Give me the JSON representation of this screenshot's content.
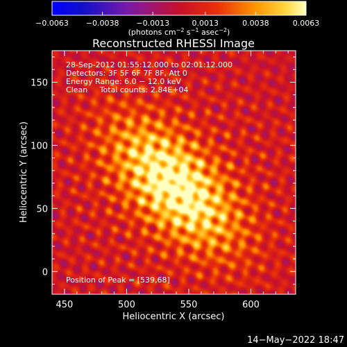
{
  "chart_data": {
    "type": "heatmap",
    "title": "Reconstructed RHESSI Image",
    "xlabel": "Heliocentric X (arcsec)",
    "ylabel": "Heliocentric Y (arcsec)",
    "xlim": [
      440,
      636
    ],
    "ylim": [
      -18,
      175
    ],
    "x_ticks": [
      {
        "value": 450,
        "label": "450"
      },
      {
        "value": 500,
        "label": "500"
      },
      {
        "value": 550,
        "label": "550"
      },
      {
        "value": 600,
        "label": "600"
      }
    ],
    "y_ticks": [
      {
        "value": 0,
        "label": "0"
      },
      {
        "value": 50,
        "label": "50"
      },
      {
        "value": 100,
        "label": "100"
      },
      {
        "value": 150,
        "label": "150"
      }
    ],
    "colorbar": {
      "min": -0.0063,
      "max": 0.0063,
      "ticks": [
        {
          "value": -0.0063,
          "label": "−0.0063"
        },
        {
          "value": -0.0038,
          "label": "−0.0038"
        },
        {
          "value": -0.0013,
          "label": "−0.0013"
        },
        {
          "value": 0.0013,
          "label": "0.0013"
        },
        {
          "value": 0.0038,
          "label": "0.0038"
        },
        {
          "value": 0.0063,
          "label": "0.0063"
        }
      ],
      "units_parts": [
        "(photons cm",
        "−2",
        " s",
        "−1",
        " asec",
        "−2",
        ")"
      ]
    },
    "info_lines": [
      "28-Sep-2012 01:55:12.000 to 02:01:12.000",
      "Detectors: 3F 5F 6F 7F 8F, Att 0",
      "Energy Range: 6.0 − 12.0 keV",
      "Clean     Total counts: 2.84E+04"
    ],
    "peak_label": "Position of Peak = [539,68]",
    "peak": {
      "x": 539,
      "y": 68
    },
    "source_orientation_deg": -45,
    "source_sigma_major_arcsec": 44,
    "source_sigma_minor_arcsec": 22
  },
  "footer": {
    "date": "14−May−2022 18:47"
  }
}
